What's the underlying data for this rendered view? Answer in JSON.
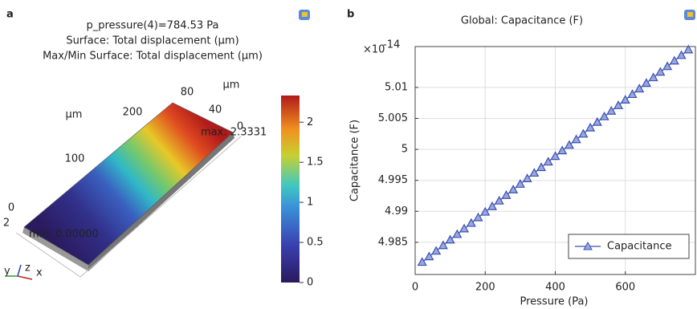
{
  "chart_data": [
    {
      "type": "surface3d",
      "panel_label": "a",
      "title_lines": [
        "p_pressure(4)=784.53 Pa",
        "Surface: Total displacement (μm)",
        "Max/Min Surface: Total displacement (μm)"
      ],
      "max_label": "max: 2.3331",
      "min_label": "min: 0.00000",
      "clim": [
        0,
        2.3331
      ],
      "colorbar_ticks": [
        0,
        0.5,
        1,
        1.5,
        2
      ],
      "axis_labels": [
        "μm",
        "80",
        "40",
        "0",
        "μm",
        "200",
        "100",
        "0",
        "2"
      ],
      "triad": [
        "y",
        "z",
        "x"
      ]
    },
    {
      "type": "line",
      "panel_label": "b",
      "title": "Global: Capacitance (F)",
      "xlabel": "Pressure (Pa)",
      "ylabel": "Capacitance (F)",
      "y_multiplier": {
        "base": "×10",
        "exponent": "-14"
      },
      "x": [
        20,
        40,
        60,
        80,
        100,
        120,
        140,
        160,
        180,
        200,
        220,
        240,
        260,
        280,
        300,
        320,
        340,
        360,
        380,
        400,
        420,
        440,
        460,
        480,
        500,
        520,
        540,
        560,
        580,
        600,
        620,
        640,
        660,
        680,
        700,
        720,
        740,
        760,
        780
      ],
      "series": [
        {
          "name": "Capacitance",
          "color": "#3b4fb0",
          "marker": "triangle",
          "values": [
            4.9818,
            4.9827,
            4.9836,
            4.9845,
            4.9854,
            4.9863,
            4.9872,
            4.9881,
            4.989,
            4.9899,
            4.9908,
            4.9917,
            4.9926,
            4.9935,
            4.9944,
            4.9953,
            4.9962,
            4.9971,
            4.998,
            4.9989,
            4.9998,
            5.0007,
            5.0016,
            5.0025,
            5.0035,
            5.0044,
            5.0053,
            5.0062,
            5.0071,
            5.008,
            5.0089,
            5.0098,
            5.0107,
            5.0116,
            5.0125,
            5.0134,
            5.0143,
            5.0152,
            5.0161
          ]
        }
      ],
      "xlim": [
        0,
        800
      ],
      "xticks": [
        0,
        200,
        400,
        600
      ],
      "ylim": [
        4.9798,
        5.0166
      ],
      "yticks": [
        4.985,
        4.99,
        4.995,
        5,
        5.005,
        5.01
      ],
      "grid": true,
      "legend": "lower right"
    }
  ]
}
